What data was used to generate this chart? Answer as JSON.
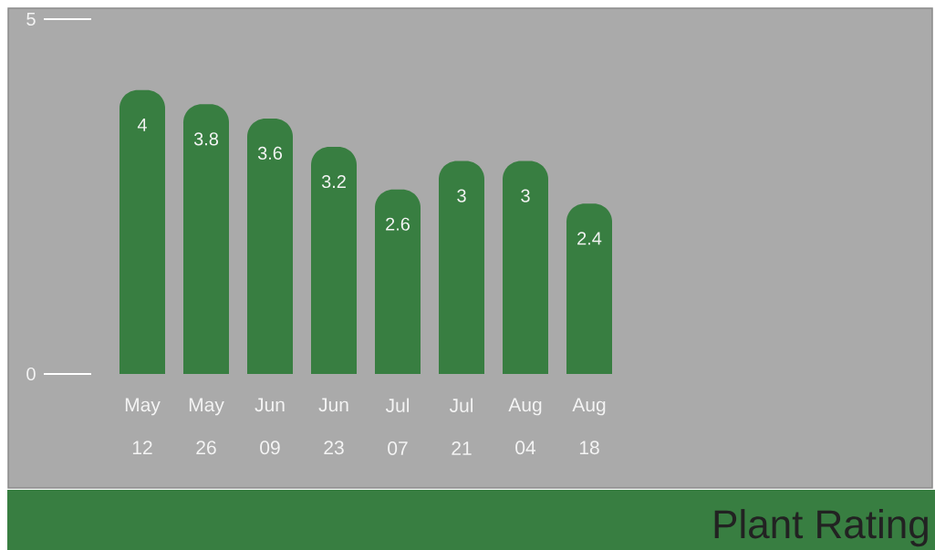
{
  "chart_data": {
    "type": "bar",
    "title": "Plant Rating",
    "categories": [
      "May 12",
      "May 26",
      "Jun 09",
      "Jun 23",
      "Jul 07",
      "Jul 21",
      "Aug 04",
      "Aug 18"
    ],
    "values": [
      4,
      3.8,
      3.6,
      3.2,
      2.6,
      3,
      3,
      2.4
    ],
    "color": "#387e41",
    "ylim": [
      0,
      5
    ],
    "yticks": [
      0,
      5
    ],
    "data_labels": true
  }
}
